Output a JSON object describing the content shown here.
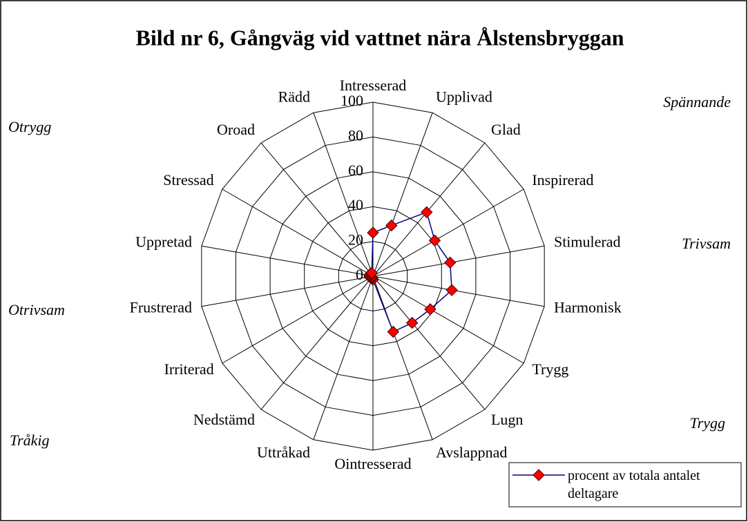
{
  "chart_data": {
    "type": "radar",
    "title": "Bild nr 6, Gångväg vid vattnet nära Ålstensbryggan",
    "categories": [
      "Intresserad",
      "Upplivad",
      "Glad",
      "Inspirerad",
      "Stimulerad",
      "Harmonisk",
      "Trygg",
      "Lugn",
      "Avslappnad",
      "Ointresserad",
      "Uttråkad",
      "Nedstämd",
      "Irriterad",
      "Frustrerad",
      "Uppretad",
      "Stressad",
      "Oroad",
      "Rädd"
    ],
    "series": [
      {
        "name": "procent av totala antalet deltagare",
        "color": "#000080",
        "marker_color": "#ff0000",
        "values": [
          25,
          31,
          48,
          41,
          45,
          46,
          38,
          35,
          34,
          2,
          1,
          1,
          1,
          2,
          2,
          2,
          2,
          2
        ]
      }
    ],
    "rlim": [
      0,
      100
    ],
    "rticks": [
      0,
      20,
      40,
      60,
      80,
      100
    ],
    "grid": true,
    "annotations": [
      "Otrygg",
      "Spännande",
      "Trivsam",
      "Otrivsam",
      "Trygg",
      "Tråkig"
    ],
    "legend": "bottom-right"
  }
}
